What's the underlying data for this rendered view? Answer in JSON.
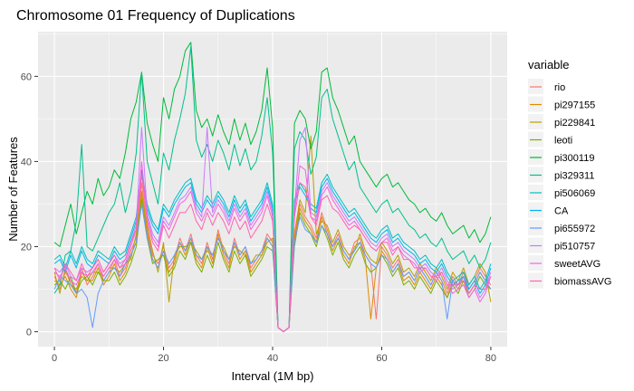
{
  "chart_data": {
    "type": "line",
    "title": "Chromosome 01 Frequency of Duplications",
    "xlabel": "Interval (1M bp)",
    "ylabel": "Number of Features",
    "xlim": [
      -3,
      83
    ],
    "ylim": [
      -3.5,
      70.5
    ],
    "xticks": [
      0,
      20,
      40,
      60,
      80
    ],
    "yticks": [
      0,
      20,
      40,
      60
    ],
    "grid": true,
    "legend": {
      "title": "variable",
      "position": "right"
    },
    "x": [
      0,
      1,
      2,
      3,
      4,
      5,
      6,
      7,
      8,
      9,
      10,
      11,
      12,
      13,
      14,
      15,
      16,
      17,
      18,
      19,
      20,
      21,
      22,
      23,
      24,
      25,
      26,
      27,
      28,
      29,
      30,
      31,
      32,
      33,
      34,
      35,
      36,
      37,
      38,
      39,
      40,
      41,
      42,
      43,
      44,
      45,
      46,
      47,
      48,
      49,
      50,
      51,
      52,
      53,
      54,
      55,
      56,
      57,
      58,
      59,
      60,
      61,
      62,
      63,
      64,
      65,
      66,
      67,
      68,
      69,
      70,
      71,
      72,
      73,
      74,
      75,
      76,
      77,
      78,
      79,
      80
    ],
    "series": [
      {
        "name": "rio",
        "color": "#F8766D",
        "values": [
          13,
          10,
          14,
          12,
          9,
          15,
          11,
          13,
          16,
          12,
          14,
          17,
          13,
          15,
          19,
          22,
          35,
          24,
          18,
          16,
          20,
          15,
          17,
          22,
          19,
          23,
          18,
          16,
          21,
          17,
          24,
          19,
          16,
          22,
          18,
          20,
          15,
          17,
          19,
          23,
          21,
          1,
          0,
          1,
          22,
          30,
          27,
          25,
          22,
          28,
          24,
          20,
          23,
          19,
          17,
          21,
          22,
          18,
          16,
          3,
          20,
          18,
          15,
          17,
          13,
          14,
          12,
          15,
          13,
          11,
          14,
          12,
          9,
          13,
          11,
          14,
          10,
          12,
          15,
          13,
          11
        ]
      },
      {
        "name": "pi297155",
        "color": "#DE8C00",
        "values": [
          12,
          11,
          13,
          10,
          8,
          14,
          12,
          12,
          15,
          11,
          13,
          16,
          12,
          14,
          18,
          21,
          33,
          23,
          17,
          15,
          19,
          14,
          16,
          21,
          18,
          22,
          17,
          15,
          20,
          16,
          23,
          18,
          15,
          21,
          17,
          19,
          14,
          16,
          18,
          22,
          20,
          1,
          0,
          1,
          21,
          29,
          26,
          24,
          21,
          27,
          23,
          19,
          22,
          18,
          16,
          20,
          21,
          17,
          3,
          15,
          19,
          17,
          14,
          16,
          12,
          13,
          11,
          14,
          12,
          10,
          13,
          11,
          8,
          12,
          10,
          13,
          9,
          11,
          14,
          12,
          10
        ]
      },
      {
        "name": "pi229841",
        "color": "#B79F00",
        "values": [
          14,
          9,
          15,
          11,
          10,
          13,
          12,
          14,
          14,
          13,
          15,
          15,
          14,
          16,
          17,
          23,
          32,
          25,
          19,
          14,
          21,
          7,
          18,
          20,
          20,
          21,
          19,
          17,
          19,
          18,
          22,
          20,
          17,
          20,
          19,
          18,
          16,
          18,
          18,
          21,
          22,
          1,
          0,
          1,
          23,
          31,
          28,
          46,
          23,
          26,
          25,
          21,
          24,
          20,
          18,
          19,
          23,
          19,
          17,
          16,
          21,
          19,
          16,
          18,
          14,
          15,
          13,
          16,
          14,
          12,
          15,
          13,
          10,
          14,
          12,
          15,
          11,
          13,
          16,
          14,
          7
        ]
      },
      {
        "name": "leoti",
        "color": "#7CAE00",
        "values": [
          11,
          12,
          10,
          13,
          9,
          12,
          13,
          11,
          14,
          12,
          12,
          14,
          11,
          13,
          16,
          20,
          31,
          22,
          16,
          17,
          18,
          13,
          15,
          19,
          17,
          21,
          16,
          14,
          18,
          15,
          21,
          17,
          14,
          19,
          16,
          18,
          13,
          15,
          17,
          20,
          19,
          1,
          0,
          1,
          20,
          28,
          25,
          23,
          20,
          25,
          22,
          18,
          21,
          17,
          15,
          18,
          20,
          16,
          14,
          15,
          18,
          16,
          13,
          15,
          11,
          12,
          10,
          13,
          11,
          9,
          12,
          10,
          8,
          11,
          9,
          12,
          8,
          10,
          13,
          11,
          10
        ]
      },
      {
        "name": "pi300119",
        "color": "#00BA38",
        "values": [
          21,
          20,
          25,
          30,
          23,
          28,
          33,
          30,
          36,
          32,
          34,
          38,
          36,
          42,
          50,
          54,
          61,
          49,
          44,
          40,
          55,
          50,
          57,
          60,
          66,
          68,
          52,
          48,
          50,
          46,
          51,
          47,
          44,
          50,
          45,
          49,
          44,
          47,
          52,
          62,
          48,
          1,
          0,
          1,
          49,
          52,
          50,
          43,
          47,
          61,
          62,
          55,
          52,
          48,
          44,
          46,
          40,
          38,
          36,
          34,
          36,
          37,
          34,
          35,
          33,
          31,
          30,
          28,
          29,
          27,
          26,
          28,
          25,
          23,
          24,
          25,
          22,
          24,
          21,
          23,
          27
        ]
      },
      {
        "name": "pi329311",
        "color": "#00C08B",
        "values": [
          9,
          11,
          18,
          19,
          26,
          44,
          20,
          19,
          22,
          25,
          28,
          30,
          35,
          28,
          33,
          42,
          61,
          40,
          35,
          30,
          42,
          38,
          45,
          50,
          56,
          67,
          45,
          41,
          44,
          40,
          45,
          42,
          38,
          44,
          39,
          43,
          38,
          40,
          46,
          55,
          42,
          1,
          0,
          1,
          43,
          47,
          45,
          37,
          41,
          55,
          57,
          50,
          46,
          42,
          38,
          40,
          34,
          32,
          30,
          28,
          30,
          31,
          28,
          29,
          27,
          25,
          24,
          22,
          23,
          21,
          20,
          22,
          19,
          17,
          18,
          19,
          16,
          18,
          15,
          17,
          21
        ]
      },
      {
        "name": "pi506069",
        "color": "#00BFC4",
        "values": [
          17,
          18,
          15,
          19,
          16,
          20,
          17,
          16,
          19,
          18,
          17,
          20,
          18,
          19,
          23,
          27,
          38,
          30,
          26,
          24,
          30,
          28,
          31,
          33,
          35,
          36,
          31,
          29,
          32,
          30,
          33,
          31,
          28,
          32,
          29,
          31,
          27,
          29,
          31,
          35,
          30,
          1,
          0,
          1,
          31,
          35,
          33,
          30,
          29,
          35,
          37,
          34,
          32,
          30,
          28,
          29,
          27,
          25,
          23,
          22,
          24,
          25,
          22,
          23,
          21,
          20,
          19,
          17,
          18,
          16,
          15,
          17,
          14,
          12,
          13,
          14,
          11,
          13,
          10,
          12,
          16
        ]
      },
      {
        "name": "CA",
        "color": "#00B4F0",
        "values": [
          16,
          17,
          14,
          18,
          15,
          19,
          16,
          15,
          18,
          17,
          16,
          19,
          17,
          18,
          22,
          26,
          37,
          29,
          25,
          23,
          29,
          27,
          30,
          32,
          34,
          35,
          30,
          28,
          31,
          29,
          32,
          30,
          27,
          31,
          28,
          30,
          26,
          28,
          30,
          34,
          29,
          1,
          0,
          1,
          30,
          34,
          32,
          29,
          28,
          34,
          36,
          33,
          31,
          29,
          27,
          28,
          26,
          24,
          22,
          21,
          23,
          24,
          21,
          22,
          20,
          19,
          18,
          16,
          17,
          15,
          14,
          16,
          13,
          11,
          12,
          13,
          10,
          12,
          9,
          11,
          15
        ]
      },
      {
        "name": "pi655972",
        "color": "#619CFF",
        "values": [
          10,
          13,
          12,
          11,
          9,
          10,
          8,
          1,
          9,
          12,
          14,
          15,
          13,
          16,
          18,
          21,
          30,
          22,
          17,
          15,
          19,
          16,
          18,
          21,
          19,
          22,
          18,
          17,
          20,
          18,
          22,
          19,
          17,
          21,
          18,
          20,
          16,
          17,
          19,
          22,
          20,
          1,
          0,
          1,
          21,
          27,
          24,
          23,
          21,
          25,
          23,
          20,
          22,
          19,
          17,
          19,
          21,
          18,
          16,
          15,
          18,
          17,
          14,
          16,
          13,
          14,
          12,
          15,
          13,
          11,
          14,
          12,
          3,
          12,
          11,
          13,
          9,
          11,
          14,
          12,
          10
        ]
      },
      {
        "name": "pi510757",
        "color": "#C77CFF",
        "values": [
          15,
          14,
          16,
          13,
          12,
          15,
          14,
          15,
          17,
          14,
          16,
          18,
          16,
          17,
          21,
          25,
          48,
          28,
          23,
          21,
          27,
          25,
          28,
          31,
          32,
          34,
          29,
          27,
          48,
          28,
          31,
          29,
          26,
          30,
          27,
          29,
          25,
          27,
          29,
          33,
          28,
          1,
          0,
          1,
          29,
          45,
          48,
          28,
          27,
          33,
          35,
          32,
          30,
          28,
          26,
          27,
          25,
          23,
          21,
          20,
          22,
          23,
          20,
          21,
          19,
          18,
          17,
          15,
          16,
          14,
          13,
          15,
          12,
          10,
          11,
          12,
          9,
          11,
          8,
          10,
          14
        ]
      },
      {
        "name": "sweetAVG",
        "color": "#F564E3",
        "values": [
          14,
          13,
          15,
          12,
          11,
          14,
          13,
          14,
          16,
          13,
          15,
          17,
          15,
          16,
          20,
          24,
          40,
          27,
          22,
          20,
          26,
          24,
          27,
          30,
          31,
          33,
          28,
          26,
          29,
          27,
          30,
          28,
          25,
          29,
          26,
          28,
          24,
          26,
          28,
          32,
          27,
          1,
          0,
          1,
          28,
          39,
          38,
          27,
          26,
          32,
          34,
          31,
          29,
          27,
          25,
          26,
          24,
          22,
          20,
          19,
          21,
          22,
          19,
          20,
          18,
          17,
          16,
          14,
          15,
          13,
          12,
          14,
          11,
          9,
          10,
          11,
          8,
          10,
          7,
          9,
          13
        ]
      },
      {
        "name": "biomassAVG",
        "color": "#FF64B0",
        "values": [
          15,
          12,
          16,
          14,
          12,
          16,
          13,
          15,
          17,
          14,
          16,
          18,
          15,
          17,
          21,
          24,
          37,
          26,
          21,
          19,
          25,
          22,
          25,
          28,
          28,
          30,
          26,
          24,
          28,
          25,
          28,
          26,
          23,
          27,
          24,
          26,
          22,
          24,
          26,
          30,
          26,
          1,
          0,
          1,
          27,
          35,
          34,
          27,
          25,
          31,
          32,
          29,
          28,
          26,
          24,
          25,
          24,
          22,
          20,
          19,
          21,
          21,
          18,
          20,
          17,
          17,
          15,
          15,
          15,
          13,
          13,
          14,
          11,
          11,
          11,
          12,
          9,
          11,
          10,
          10,
          13
        ]
      }
    ]
  }
}
